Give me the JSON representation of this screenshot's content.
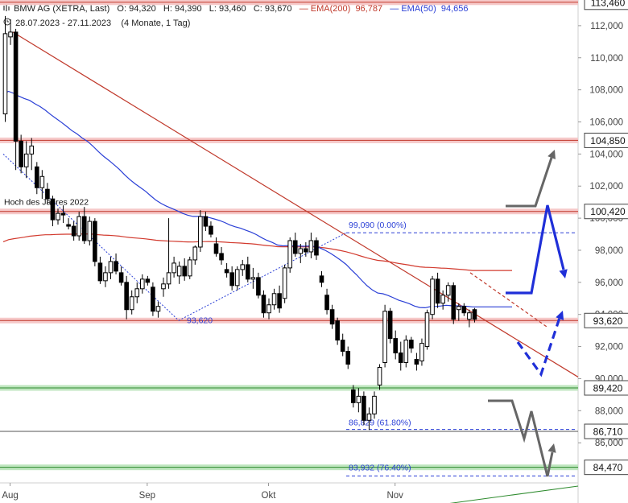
{
  "header": {
    "instrument": "BMW AG (XETRA, Last)",
    "open": "O: 94,320",
    "high": "H: 94,390",
    "low": "L: 93,460",
    "close": "C: 93,670",
    "ema200_label": "EMA(200)",
    "ema200_value": "96,787",
    "ema50_label": "EMA(50)",
    "ema50_value": "94,656",
    "range": "28.07.2023 - 27.11.2023",
    "period": "(4 Monate, 1 Tag)"
  },
  "colors": {
    "ema200": "#d23a2e",
    "ema50": "#2a3fd6",
    "resistance_band": "#f6c9c9",
    "support_band": "#bfe6bf",
    "candle_up": "#ffffff",
    "candle_down": "#000000",
    "projection_blue": "#1f2fd8",
    "projection_gray": "#666666"
  },
  "chart_data": {
    "type": "candlestick",
    "ylim": [
      83.5,
      113.6
    ],
    "x_ticks": [
      "Aug",
      "Sep",
      "Okt",
      "Nov"
    ],
    "y_ticks": [
      {
        "value": 112,
        "label": "112,000"
      },
      {
        "value": 110,
        "label": "110,000"
      },
      {
        "value": 108,
        "label": "108,000"
      },
      {
        "value": 106,
        "label": "106,000"
      },
      {
        "value": 104,
        "label": "104,000"
      },
      {
        "value": 102,
        "label": "102,000"
      },
      {
        "value": 100,
        "label": "100,000"
      },
      {
        "value": 98,
        "label": "98,000"
      },
      {
        "value": 96,
        "label": "96,000"
      },
      {
        "value": 94,
        "label": "94,000"
      },
      {
        "value": 92,
        "label": "92,000"
      },
      {
        "value": 90,
        "label": "90,000"
      },
      {
        "value": 88,
        "label": "88,000"
      },
      {
        "value": 86,
        "label": "86,000"
      }
    ],
    "price_levels": [
      {
        "value": 113.46,
        "label": "113,460",
        "kind": "resistance"
      },
      {
        "value": 104.85,
        "label": "104,850",
        "kind": "resistance"
      },
      {
        "value": 100.42,
        "label": "100,420",
        "kind": "resistance"
      },
      {
        "value": 93.62,
        "label": "93,620",
        "kind": "resistance"
      },
      {
        "value": 89.42,
        "label": "89,420",
        "kind": "support"
      },
      {
        "value": 86.71,
        "label": "86,710",
        "kind": "line"
      },
      {
        "value": 84.47,
        "label": "84,470",
        "kind": "support"
      }
    ],
    "annotations": {
      "year_high": "Hoch des Jahres 2022",
      "fib_top": "99,090 (0.00%)",
      "fib_mid": "86,829 (61.80%)",
      "fib_low": "83,932 (76.40%)",
      "swing_low": "93,620"
    },
    "fib_levels": [
      99.09,
      86.829,
      83.932
    ],
    "candles": [
      {
        "o": 106.5,
        "h": 112.6,
        "l": 106.0,
        "c": 111.5
      },
      {
        "o": 111.3,
        "h": 112.4,
        "l": 110.8,
        "c": 111.6
      },
      {
        "o": 111.6,
        "h": 111.8,
        "l": 103.0,
        "c": 104.8
      },
      {
        "o": 104.8,
        "h": 105.2,
        "l": 102.8,
        "c": 103.2
      },
      {
        "o": 103.2,
        "h": 104.8,
        "l": 102.5,
        "c": 104.0
      },
      {
        "o": 104.0,
        "h": 105.0,
        "l": 103.0,
        "c": 104.5
      },
      {
        "o": 103.2,
        "h": 103.5,
        "l": 101.5,
        "c": 101.9
      },
      {
        "o": 101.9,
        "h": 103.0,
        "l": 101.2,
        "c": 102.6
      },
      {
        "o": 101.8,
        "h": 102.2,
        "l": 100.9,
        "c": 101.2
      },
      {
        "o": 101.2,
        "h": 101.4,
        "l": 99.5,
        "c": 99.9
      },
      {
        "o": 99.9,
        "h": 100.6,
        "l": 99.6,
        "c": 100.3
      },
      {
        "o": 100.3,
        "h": 100.8,
        "l": 99.7,
        "c": 100.2
      },
      {
        "o": 99.6,
        "h": 100.0,
        "l": 99.3,
        "c": 99.5
      },
      {
        "o": 99.5,
        "h": 99.8,
        "l": 98.6,
        "c": 98.9
      },
      {
        "o": 98.9,
        "h": 100.4,
        "l": 98.6,
        "c": 100.1
      },
      {
        "o": 100.1,
        "h": 100.7,
        "l": 98.4,
        "c": 98.6
      },
      {
        "o": 98.6,
        "h": 100.1,
        "l": 98.3,
        "c": 99.8
      },
      {
        "o": 99.8,
        "h": 100.0,
        "l": 97.0,
        "c": 97.3
      },
      {
        "o": 97.2,
        "h": 97.6,
        "l": 95.9,
        "c": 96.1
      },
      {
        "o": 96.1,
        "h": 97.0,
        "l": 95.7,
        "c": 96.6
      },
      {
        "o": 96.6,
        "h": 97.6,
        "l": 96.2,
        "c": 97.3
      },
      {
        "o": 97.3,
        "h": 97.8,
        "l": 96.5,
        "c": 96.7
      },
      {
        "o": 96.6,
        "h": 97.0,
        "l": 95.8,
        "c": 96.0
      },
      {
        "o": 96.0,
        "h": 96.4,
        "l": 93.7,
        "c": 94.3
      },
      {
        "o": 94.3,
        "h": 95.5,
        "l": 94.0,
        "c": 95.1
      },
      {
        "o": 95.1,
        "h": 96.0,
        "l": 94.7,
        "c": 95.6
      },
      {
        "o": 95.6,
        "h": 96.5,
        "l": 95.3,
        "c": 96.2
      },
      {
        "o": 96.2,
        "h": 96.4,
        "l": 95.8,
        "c": 96.0
      },
      {
        "o": 95.7,
        "h": 96.0,
        "l": 93.9,
        "c": 94.2
      },
      {
        "o": 94.2,
        "h": 94.8,
        "l": 93.8,
        "c": 94.5
      },
      {
        "o": 95.6,
        "h": 96.3,
        "l": 95.1,
        "c": 95.9
      },
      {
        "o": 95.9,
        "h": 100.0,
        "l": 95.6,
        "c": 96.6
      },
      {
        "o": 96.6,
        "h": 97.6,
        "l": 96.3,
        "c": 97.2
      },
      {
        "o": 96.4,
        "h": 97.3,
        "l": 95.9,
        "c": 97.0
      },
      {
        "o": 97.0,
        "h": 97.5,
        "l": 96.1,
        "c": 96.4
      },
      {
        "o": 96.4,
        "h": 97.6,
        "l": 96.2,
        "c": 97.4
      },
      {
        "o": 97.4,
        "h": 98.3,
        "l": 97.1,
        "c": 98.2
      },
      {
        "o": 98.2,
        "h": 100.5,
        "l": 97.9,
        "c": 100.1
      },
      {
        "o": 100.1,
        "h": 100.4,
        "l": 99.2,
        "c": 99.5
      },
      {
        "o": 99.5,
        "h": 99.8,
        "l": 98.8,
        "c": 99.0
      },
      {
        "o": 98.4,
        "h": 98.8,
        "l": 97.6,
        "c": 97.8
      },
      {
        "o": 97.8,
        "h": 98.2,
        "l": 97.1,
        "c": 97.4
      },
      {
        "o": 96.8,
        "h": 97.2,
        "l": 96.3,
        "c": 96.6
      },
      {
        "o": 96.6,
        "h": 97.0,
        "l": 95.5,
        "c": 95.8
      },
      {
        "o": 95.8,
        "h": 97.0,
        "l": 95.5,
        "c": 96.8
      },
      {
        "o": 96.8,
        "h": 97.4,
        "l": 96.4,
        "c": 97.1
      },
      {
        "o": 97.1,
        "h": 97.6,
        "l": 96.0,
        "c": 96.2
      },
      {
        "o": 96.2,
        "h": 96.9,
        "l": 95.6,
        "c": 96.3
      },
      {
        "o": 96.3,
        "h": 96.6,
        "l": 95.0,
        "c": 95.2
      },
      {
        "o": 95.2,
        "h": 95.5,
        "l": 93.8,
        "c": 94.1
      },
      {
        "o": 94.1,
        "h": 95.0,
        "l": 93.7,
        "c": 94.6
      },
      {
        "o": 94.6,
        "h": 95.6,
        "l": 94.3,
        "c": 95.3
      },
      {
        "o": 95.3,
        "h": 95.8,
        "l": 94.1,
        "c": 94.4
      },
      {
        "o": 95.0,
        "h": 97.1,
        "l": 94.7,
        "c": 96.9
      },
      {
        "o": 96.9,
        "h": 98.8,
        "l": 96.6,
        "c": 98.6
      },
      {
        "o": 98.6,
        "h": 99.1,
        "l": 97.6,
        "c": 97.8
      },
      {
        "o": 97.8,
        "h": 98.4,
        "l": 97.2,
        "c": 98.1
      },
      {
        "o": 98.1,
        "h": 98.5,
        "l": 97.6,
        "c": 97.9
      },
      {
        "o": 97.9,
        "h": 99.1,
        "l": 97.5,
        "c": 98.6
      },
      {
        "o": 98.6,
        "h": 98.8,
        "l": 97.4,
        "c": 97.7
      },
      {
        "o": 96.4,
        "h": 96.7,
        "l": 95.7,
        "c": 96.0
      },
      {
        "o": 95.2,
        "h": 95.6,
        "l": 94.0,
        "c": 94.3
      },
      {
        "o": 94.3,
        "h": 94.6,
        "l": 93.1,
        "c": 93.4
      },
      {
        "o": 93.6,
        "h": 93.8,
        "l": 92.1,
        "c": 92.4
      },
      {
        "o": 92.4,
        "h": 92.8,
        "l": 91.4,
        "c": 91.7
      },
      {
        "o": 91.7,
        "h": 92.0,
        "l": 90.6,
        "c": 90.9
      },
      {
        "o": 89.3,
        "h": 89.6,
        "l": 88.2,
        "c": 88.5
      },
      {
        "o": 88.5,
        "h": 89.4,
        "l": 87.9,
        "c": 88.9
      },
      {
        "o": 88.9,
        "h": 89.2,
        "l": 87.1,
        "c": 87.4
      },
      {
        "o": 87.4,
        "h": 88.2,
        "l": 86.8,
        "c": 87.8
      },
      {
        "o": 87.8,
        "h": 89.2,
        "l": 87.5,
        "c": 88.9
      },
      {
        "o": 89.6,
        "h": 90.9,
        "l": 89.3,
        "c": 90.7
      },
      {
        "o": 91.0,
        "h": 94.6,
        "l": 90.7,
        "c": 94.2
      },
      {
        "o": 94.2,
        "h": 94.4,
        "l": 92.2,
        "c": 92.5
      },
      {
        "o": 92.5,
        "h": 93.0,
        "l": 91.2,
        "c": 91.6
      },
      {
        "o": 91.6,
        "h": 92.3,
        "l": 90.5,
        "c": 91.0
      },
      {
        "o": 91.0,
        "h": 92.7,
        "l": 90.7,
        "c": 92.4
      },
      {
        "o": 92.4,
        "h": 92.6,
        "l": 91.6,
        "c": 91.9
      },
      {
        "o": 91.2,
        "h": 91.6,
        "l": 90.5,
        "c": 90.9
      },
      {
        "o": 91.1,
        "h": 92.5,
        "l": 90.8,
        "c": 92.2
      },
      {
        "o": 92.0,
        "h": 94.3,
        "l": 91.8,
        "c": 94.1
      },
      {
        "o": 94.0,
        "h": 96.4,
        "l": 93.7,
        "c": 96.2
      },
      {
        "o": 96.2,
        "h": 96.6,
        "l": 94.4,
        "c": 94.7
      },
      {
        "o": 94.7,
        "h": 95.5,
        "l": 94.3,
        "c": 95.2
      },
      {
        "o": 95.2,
        "h": 96.0,
        "l": 94.8,
        "c": 95.8
      },
      {
        "o": 95.8,
        "h": 96.0,
        "l": 93.4,
        "c": 93.7
      },
      {
        "o": 94.3,
        "h": 94.7,
        "l": 93.6,
        "c": 94.5
      },
      {
        "o": 94.5,
        "h": 94.7,
        "l": 93.9,
        "c": 94.1
      },
      {
        "o": 93.7,
        "h": 94.3,
        "l": 93.2,
        "c": 94.1
      },
      {
        "o": 94.3,
        "h": 94.4,
        "l": 93.5,
        "c": 93.7
      }
    ]
  }
}
